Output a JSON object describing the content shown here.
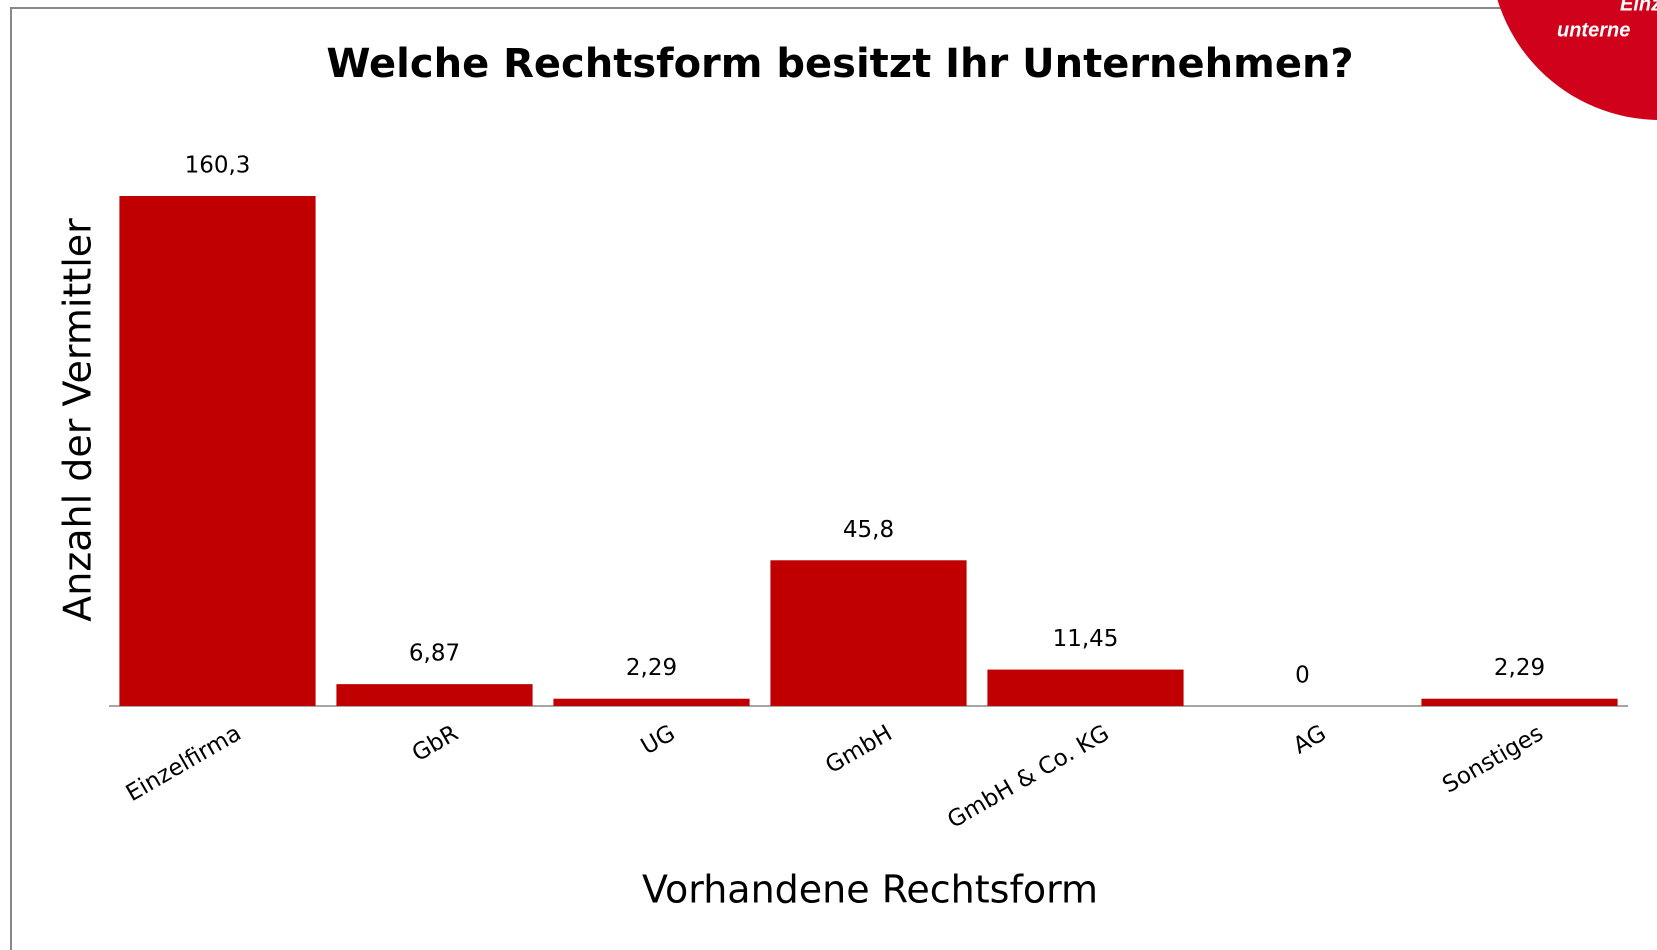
{
  "chart_data": {
    "type": "bar",
    "title": "Welche Rechtsform besitzt Ihr Unternehmen?",
    "x_label": "Vorhandene Rechtsform",
    "y_label": "Anzahl der Vermittler",
    "categories": [
      "Einzelfirma",
      "GbR",
      "UG",
      "GmbH",
      "GmbH & Co. KG",
      "AG",
      "Sonstiges"
    ],
    "values": [
      160.3,
      6.87,
      2.29,
      45.8,
      11.45,
      0,
      2.29
    ],
    "value_labels": [
      "160,3",
      "6,87",
      "2,29",
      "45,8",
      "11,45",
      "0",
      "2,29"
    ],
    "color": "#c00000"
  },
  "badge": {
    "lines": [
      "Einz",
      "unterne"
    ]
  }
}
